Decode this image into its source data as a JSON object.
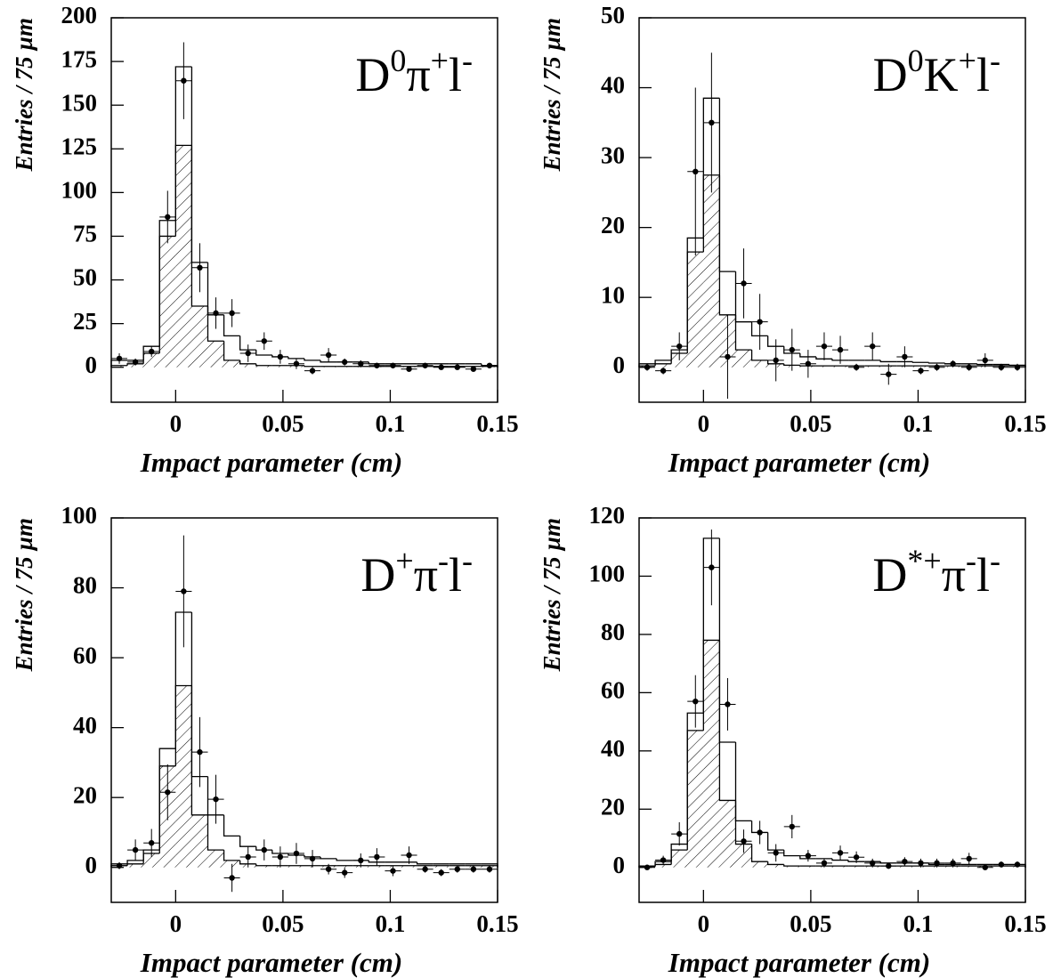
{
  "chart_data": [
    {
      "type": "histogram",
      "xlabel": "Impact parameter (cm)",
      "ylabel": "Entries / 75 µm",
      "annotation": {
        "base": [
          "D",
          "π",
          "l"
        ],
        "sup": [
          "0",
          "+",
          "-"
        ]
      },
      "xlim": [
        -0.03,
        0.15
      ],
      "xticks": [
        0,
        0.05,
        0.1,
        0.15
      ],
      "ylim": [
        -20,
        200
      ],
      "yticks": [
        0,
        25,
        50,
        75,
        100,
        125,
        150,
        175,
        200
      ],
      "bins": [
        -0.03,
        -0.0225,
        -0.015,
        -0.0075,
        0,
        0.0075,
        0.015,
        0.0225,
        0.03,
        0.0375,
        0.045,
        0.0525,
        0.06,
        0.0675,
        0.075,
        0.0825,
        0.09,
        0.0975,
        0.105,
        0.1125,
        0.12,
        0.1275,
        0.135,
        0.1425,
        0.15
      ],
      "color": "#000000",
      "series": [
        {
          "hatch": false,
          "values": [
            4,
            4,
            12,
            84,
            172,
            60,
            30,
            18,
            10,
            7,
            6,
            5,
            4,
            3,
            3,
            3,
            2,
            2,
            2,
            2,
            2,
            2,
            2,
            1
          ]
        },
        {
          "hatch": true,
          "values": [
            1,
            2,
            8,
            75,
            127,
            35,
            15,
            4,
            2,
            1,
            1,
            1,
            0.5,
            0.5,
            0.5,
            0.5,
            0.5,
            0.5,
            0.5,
            0.5,
            0.5,
            0.5,
            0.5,
            0.5
          ]
        }
      ],
      "points": {
        "values": [
          5,
          3,
          9,
          86,
          164,
          57,
          31,
          31,
          8,
          15,
          6,
          2,
          -2,
          7,
          3,
          2,
          1,
          1,
          -1,
          1,
          0,
          0,
          -1,
          1
        ],
        "errors": [
          3,
          2,
          3,
          15,
          22,
          14,
          9,
          8,
          5,
          5,
          4,
          3,
          2,
          4,
          2,
          2,
          1.5,
          1.5,
          1.5,
          1.5,
          1,
          1,
          1.5,
          1.5
        ]
      }
    },
    {
      "type": "histogram",
      "xlabel": "Impact parameter (cm)",
      "ylabel": "Entries / 75 µm",
      "annotation": {
        "base": [
          "D",
          "K",
          "l"
        ],
        "sup": [
          "0",
          "+",
          "-"
        ]
      },
      "xlim": [
        -0.03,
        0.15
      ],
      "xticks": [
        0,
        0.05,
        0.1,
        0.15
      ],
      "ylim": [
        -5,
        50
      ],
      "yticks": [
        0,
        10,
        20,
        30,
        40,
        50
      ],
      "bins": [
        -0.03,
        -0.0225,
        -0.015,
        -0.0075,
        0,
        0.0075,
        0.015,
        0.0225,
        0.03,
        0.0375,
        0.045,
        0.0525,
        0.06,
        0.0675,
        0.075,
        0.0825,
        0.09,
        0.0975,
        0.105,
        0.1125,
        0.12,
        0.1275,
        0.135,
        0.1425,
        0.15
      ],
      "color": "#000000",
      "series": [
        {
          "hatch": false,
          "values": [
            0.5,
            1,
            2.5,
            18.5,
            38.5,
            13.7,
            6.5,
            4.5,
            3,
            2,
            1.5,
            1.2,
            1,
            1,
            1,
            0.8,
            0.8,
            0.7,
            0.6,
            0.5,
            0.5,
            0.4,
            0.4,
            0.3
          ]
        },
        {
          "hatch": true,
          "values": [
            0.2,
            0.5,
            2,
            16.5,
            27.5,
            7.5,
            2.5,
            1,
            0.5,
            0.3,
            0.2,
            0.2,
            0.2,
            0.2,
            0.2,
            0.2,
            0.2,
            0.2,
            0.2,
            0.2,
            0.2,
            0.2,
            0.2,
            0.2
          ]
        }
      ],
      "points": {
        "values": [
          0,
          -0.5,
          3,
          28,
          35,
          1.5,
          12,
          6.5,
          1,
          2.5,
          0.5,
          3,
          2.5,
          0,
          3,
          -1,
          1.5,
          -0.5,
          0,
          0.5,
          0,
          1,
          0,
          0
        ],
        "errors": [
          0.5,
          0.5,
          2,
          12,
          10,
          6,
          5,
          4,
          3,
          3,
          2,
          2,
          2,
          0.5,
          2,
          1.5,
          1.5,
          0.5,
          0.5,
          0.5,
          0.5,
          1,
          0.5,
          0.5
        ]
      }
    },
    {
      "type": "histogram",
      "xlabel": "Impact parameter (cm)",
      "ylabel": "Entries / 75 µm",
      "annotation": {
        "base": [
          "D",
          "π",
          "l"
        ],
        "sup": [
          "+",
          "-",
          "-"
        ]
      },
      "xlim": [
        -0.03,
        0.15
      ],
      "xticks": [
        0,
        0.05,
        0.1,
        0.15
      ],
      "ylim": [
        -10,
        100
      ],
      "yticks": [
        0,
        20,
        40,
        60,
        80,
        100
      ],
      "bins": [
        -0.03,
        -0.0225,
        -0.015,
        -0.0075,
        0,
        0.0075,
        0.015,
        0.0225,
        0.03,
        0.0375,
        0.045,
        0.0525,
        0.06,
        0.0675,
        0.075,
        0.0825,
        0.09,
        0.0975,
        0.105,
        0.1125,
        0.12,
        0.1275,
        0.135,
        0.1425,
        0.15
      ],
      "color": "#000000",
      "series": [
        {
          "hatch": false,
          "values": [
            1,
            2,
            5,
            34,
            73,
            26,
            15,
            9,
            6,
            5,
            4,
            3.5,
            3,
            2.5,
            2,
            2,
            1.5,
            1.5,
            1.5,
            1,
            1,
            1,
            1,
            1
          ]
        },
        {
          "hatch": true,
          "values": [
            0.5,
            1,
            4,
            29,
            52,
            15,
            5,
            2,
            1,
            0.5,
            0.5,
            0.5,
            0.5,
            0.5,
            0.5,
            0.5,
            0.5,
            0.5,
            0.5,
            0.5,
            0.5,
            0.5,
            0.5,
            0.5
          ]
        }
      ],
      "points": {
        "values": [
          0.5,
          5,
          7,
          21.5,
          79,
          33,
          19.5,
          -3,
          3,
          5,
          3,
          4,
          2.5,
          -0.5,
          -1.5,
          2,
          3,
          -1,
          3.5,
          -0.5,
          -1.5,
          -0.5,
          -0.5,
          -0.5
        ],
        "errors": [
          1,
          3,
          4,
          8,
          16,
          10,
          7,
          4,
          3,
          3,
          3,
          3,
          2.5,
          1.5,
          1.5,
          2,
          2.5,
          1.5,
          2.5,
          1,
          1,
          1,
          1,
          1
        ]
      }
    },
    {
      "type": "histogram",
      "xlabel": "Impact parameter (cm)",
      "ylabel": "Entries / 75 µm",
      "annotation": {
        "base": [
          "D",
          "π",
          "l"
        ],
        "sup": [
          "*+",
          "-",
          "-"
        ]
      },
      "xlim": [
        -0.03,
        0.15
      ],
      "xticks": [
        0,
        0.05,
        0.1,
        0.15
      ],
      "ylim": [
        -12,
        120
      ],
      "yticks": [
        0,
        20,
        40,
        60,
        80,
        100,
        120
      ],
      "bins": [
        -0.03,
        -0.0225,
        -0.015,
        -0.0075,
        0,
        0.0075,
        0.015,
        0.0225,
        0.03,
        0.0375,
        0.045,
        0.0525,
        0.06,
        0.0675,
        0.075,
        0.0825,
        0.09,
        0.0975,
        0.105,
        0.1125,
        0.12,
        0.1275,
        0.135,
        0.1425,
        0.15
      ],
      "color": "#000000",
      "series": [
        {
          "hatch": false,
          "values": [
            0.5,
            2,
            8,
            53,
            113,
            43,
            16,
            12,
            6,
            4,
            3,
            3,
            2.5,
            2,
            2,
            1.5,
            1.5,
            1.5,
            1,
            1,
            1,
            1,
            1,
            1
          ]
        },
        {
          "hatch": true,
          "values": [
            0.3,
            1,
            6,
            47,
            78,
            23,
            8,
            2,
            1,
            0.5,
            0.5,
            0.5,
            0.5,
            0.5,
            0.5,
            0.5,
            0.5,
            0.5,
            0.5,
            0.5,
            0.5,
            0.5,
            0.5,
            0.5
          ]
        }
      ],
      "points": {
        "values": [
          0,
          2.5,
          11.5,
          57,
          103,
          56,
          9,
          12,
          5,
          14,
          4,
          1.5,
          5,
          3.5,
          1.5,
          0.5,
          2,
          1.5,
          1.5,
          1.5,
          3,
          0,
          1,
          1
        ],
        "errors": [
          0.5,
          1.5,
          4,
          9,
          13,
          9,
          4,
          4,
          3,
          4,
          2,
          1.5,
          2.5,
          2,
          1.5,
          1,
          1.5,
          1.5,
          1.5,
          1.5,
          2,
          0.5,
          1,
          1
        ]
      }
    }
  ]
}
